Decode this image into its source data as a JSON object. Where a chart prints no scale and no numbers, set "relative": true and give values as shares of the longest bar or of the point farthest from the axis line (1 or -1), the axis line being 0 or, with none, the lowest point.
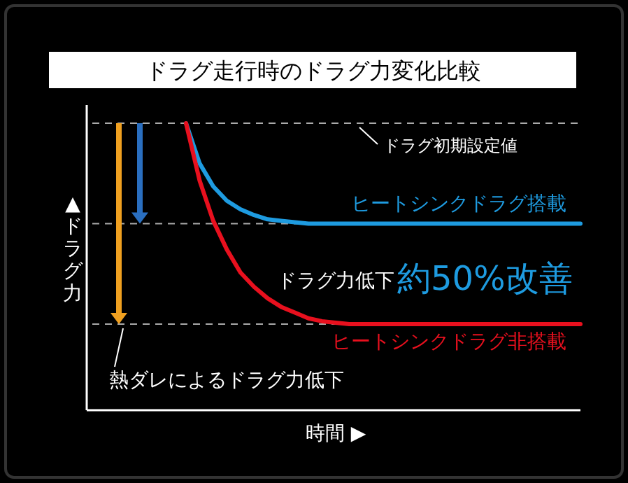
{
  "chart_data": {
    "type": "line",
    "relative": true,
    "title": "ドラグ走行時のドラグ力変化比較",
    "xlabel": "時間 ▶",
    "ylabel": "▲ドラグ力",
    "legend": false,
    "marker": "none",
    "line_style": "solid",
    "categories": [
      null,
      null,
      null,
      null,
      null,
      null,
      null,
      null,
      null,
      null,
      null,
      null,
      null,
      null,
      null,
      null,
      null,
      null,
      null,
      null,
      null,
      null,
      null,
      null,
      null,
      null,
      null,
      null,
      null,
      null
    ],
    "series": [
      {
        "name": "ヒートシンクドラグ搭載",
        "color": "#1e9be0",
        "values": [
          1.0,
          0.86,
          0.78,
          0.73,
          0.7,
          0.68,
          0.665,
          0.66,
          0.655,
          0.65,
          0.65,
          0.65,
          0.65,
          0.65,
          0.65,
          0.65,
          0.65,
          0.65,
          0.65,
          0.65,
          0.65,
          0.65,
          0.65,
          0.65,
          0.65,
          0.65,
          0.65,
          0.65,
          0.65,
          0.65
        ]
      },
      {
        "name": "ヒートシンクドラグ非搭載",
        "color": "#e8101e",
        "values": [
          1.0,
          0.8,
          0.66,
          0.56,
          0.48,
          0.43,
          0.39,
          0.36,
          0.34,
          0.32,
          0.31,
          0.305,
          0.3,
          0.3,
          0.3,
          0.3,
          0.3,
          0.3,
          0.3,
          0.3,
          0.3,
          0.3,
          0.3,
          0.3,
          0.3,
          0.3,
          0.3,
          0.3,
          0.3,
          0.3
        ]
      }
    ],
    "ref_lines": [
      {
        "axis": "y",
        "value": 1,
        "label": "ドラグ初期設定値",
        "color": "#aaaaaa",
        "line_style": "dashed"
      },
      {
        "axis": "y",
        "value": 0.65,
        "color": "#aaaaaa",
        "line_style": "dashed"
      },
      {
        "axis": "y",
        "value": 0.3,
        "color": "#aaaaaa",
        "line_style": "dashed"
      }
    ],
    "annotations": [
      "ドラグ力低下",
      "約50%改善",
      "熱ダレによるドラグ力低下"
    ]
  }
}
